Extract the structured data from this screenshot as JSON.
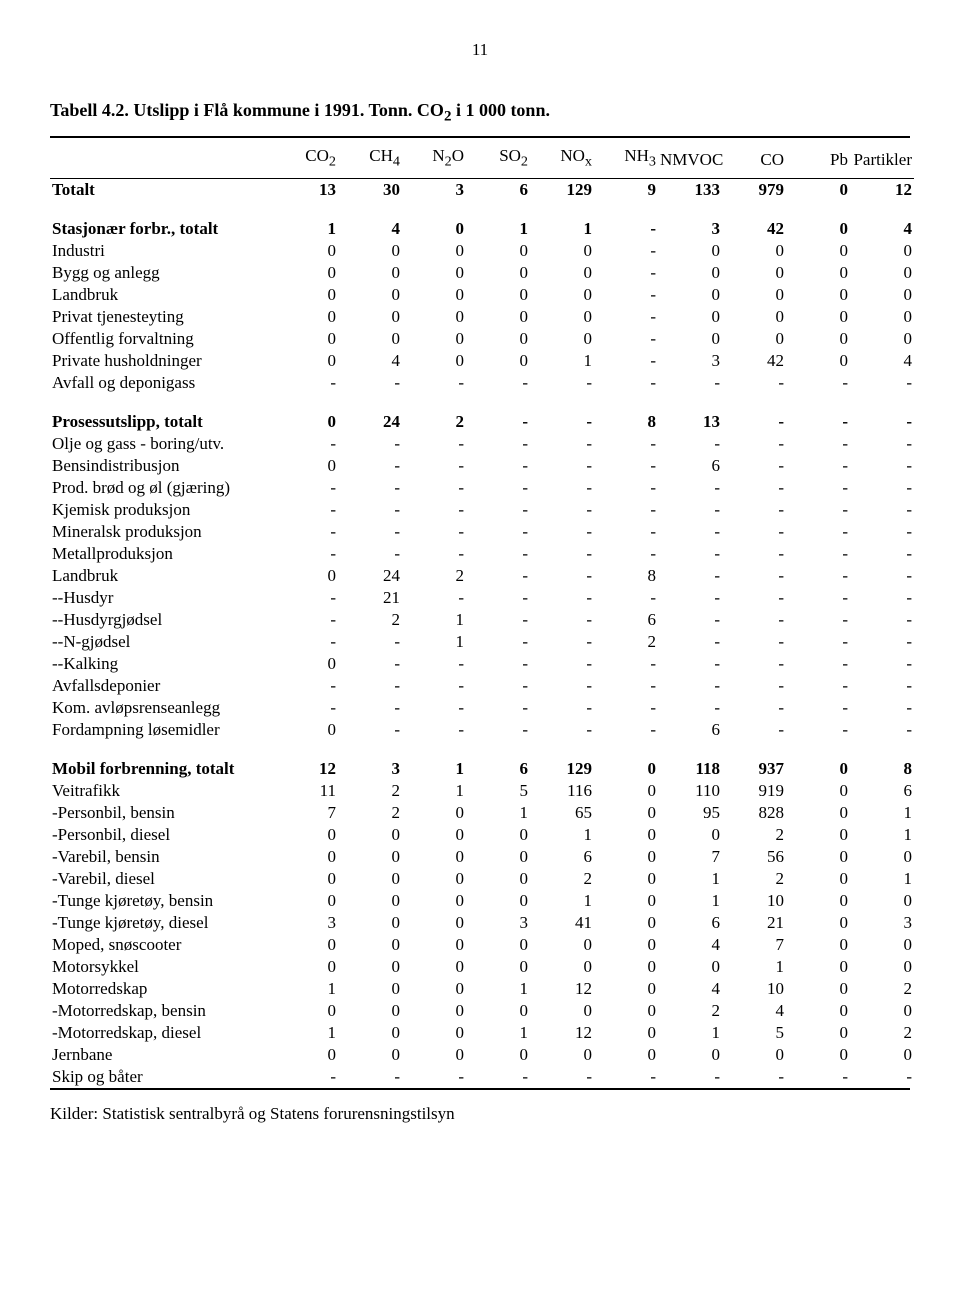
{
  "page_number": "11",
  "title_parts": {
    "a": "Tabell 4.2. Utslipp i Flå kommune i 1991. Tonn. CO",
    "sub": "2",
    "b": " i 1 000 tonn."
  },
  "headers": {
    "co2": {
      "a": "CO",
      "sub": "2"
    },
    "ch4": {
      "a": "CH",
      "sub": "4"
    },
    "n2o": {
      "a": "N",
      "sub": "2",
      "b": "O"
    },
    "so2": {
      "a": "SO",
      "sub": "2"
    },
    "nox": {
      "a": "NO",
      "sub": "x"
    },
    "nh3": {
      "a": "NH",
      "sub": "3"
    },
    "nmvoc": "NMVOC",
    "co": "CO",
    "pb": "Pb",
    "part": "Partikler"
  },
  "rows": [
    {
      "bold": true,
      "label": "Totalt",
      "v": [
        "13",
        "30",
        "3",
        "6",
        "129",
        "9",
        "133",
        "979",
        "0",
        "12"
      ]
    },
    {
      "gap": true,
      "bold": true,
      "label": "Stasjonær forbr., totalt",
      "v": [
        "1",
        "4",
        "0",
        "1",
        "1",
        "-",
        "3",
        "42",
        "0",
        "4"
      ]
    },
    {
      "label": "Industri",
      "v": [
        "0",
        "0",
        "0",
        "0",
        "0",
        "-",
        "0",
        "0",
        "0",
        "0"
      ]
    },
    {
      "label": "Bygg og anlegg",
      "v": [
        "0",
        "0",
        "0",
        "0",
        "0",
        "-",
        "0",
        "0",
        "0",
        "0"
      ]
    },
    {
      "label": "Landbruk",
      "v": [
        "0",
        "0",
        "0",
        "0",
        "0",
        "-",
        "0",
        "0",
        "0",
        "0"
      ]
    },
    {
      "label": "Privat tjenesteyting",
      "v": [
        "0",
        "0",
        "0",
        "0",
        "0",
        "-",
        "0",
        "0",
        "0",
        "0"
      ]
    },
    {
      "label": "Offentlig forvaltning",
      "v": [
        "0",
        "0",
        "0",
        "0",
        "0",
        "-",
        "0",
        "0",
        "0",
        "0"
      ]
    },
    {
      "label": "Private husholdninger",
      "v": [
        "0",
        "4",
        "0",
        "0",
        "1",
        "-",
        "3",
        "42",
        "0",
        "4"
      ]
    },
    {
      "label": "Avfall og deponigass",
      "v": [
        "-",
        "-",
        "-",
        "-",
        "-",
        "-",
        "-",
        "-",
        "-",
        "-"
      ]
    },
    {
      "gap": true,
      "bold": true,
      "label": "Prosessutslipp, totalt",
      "v": [
        "0",
        "24",
        "2",
        "-",
        "-",
        "8",
        "13",
        "-",
        "-",
        "-"
      ]
    },
    {
      "label": "Olje og gass - boring/utv.",
      "v": [
        "-",
        "-",
        "-",
        "-",
        "-",
        "-",
        "-",
        "-",
        "-",
        "-"
      ]
    },
    {
      "label": "Bensindistribusjon",
      "v": [
        "0",
        "-",
        "-",
        "-",
        "-",
        "-",
        "6",
        "-",
        "-",
        "-"
      ]
    },
    {
      "label": "Prod. brød og øl (gjæring)",
      "v": [
        "-",
        "-",
        "-",
        "-",
        "-",
        "-",
        "-",
        "-",
        "-",
        "-"
      ]
    },
    {
      "label": "Kjemisk produksjon",
      "v": [
        "-",
        "-",
        "-",
        "-",
        "-",
        "-",
        "-",
        "-",
        "-",
        "-"
      ]
    },
    {
      "label": "Mineralsk produksjon",
      "v": [
        "-",
        "-",
        "-",
        "-",
        "-",
        "-",
        "-",
        "-",
        "-",
        "-"
      ]
    },
    {
      "label": "Metallproduksjon",
      "v": [
        "-",
        "-",
        "-",
        "-",
        "-",
        "-",
        "-",
        "-",
        "-",
        "-"
      ]
    },
    {
      "label": "Landbruk",
      "v": [
        "0",
        "24",
        "2",
        "-",
        "-",
        "8",
        "-",
        "-",
        "-",
        "-"
      ]
    },
    {
      "label": "--Husdyr",
      "v": [
        "-",
        "21",
        "-",
        "-",
        "-",
        "-",
        "-",
        "-",
        "-",
        "-"
      ]
    },
    {
      "label": "--Husdyrgjødsel",
      "v": [
        "-",
        "2",
        "1",
        "-",
        "-",
        "6",
        "-",
        "-",
        "-",
        "-"
      ]
    },
    {
      "label": "--N-gjødsel",
      "v": [
        "-",
        "-",
        "1",
        "-",
        "-",
        "2",
        "-",
        "-",
        "-",
        "-"
      ]
    },
    {
      "label": "--Kalking",
      "v": [
        "0",
        "-",
        "-",
        "-",
        "-",
        "-",
        "-",
        "-",
        "-",
        "-"
      ]
    },
    {
      "label": "Avfallsdeponier",
      "v": [
        "-",
        "-",
        "-",
        "-",
        "-",
        "-",
        "-",
        "-",
        "-",
        "-"
      ]
    },
    {
      "label": "Kom. avløpsrenseanlegg",
      "v": [
        "-",
        "-",
        "-",
        "-",
        "-",
        "-",
        "-",
        "-",
        "-",
        "-"
      ]
    },
    {
      "label": "Fordampning løsemidler",
      "v": [
        "0",
        "-",
        "-",
        "-",
        "-",
        "-",
        "6",
        "-",
        "-",
        "-"
      ]
    },
    {
      "gap": true,
      "bold": true,
      "label": "Mobil forbrenning, totalt",
      "v": [
        "12",
        "3",
        "1",
        "6",
        "129",
        "0",
        "118",
        "937",
        "0",
        "8"
      ]
    },
    {
      "label": "Veitrafikk",
      "v": [
        "11",
        "2",
        "1",
        "5",
        "116",
        "0",
        "110",
        "919",
        "0",
        "6"
      ]
    },
    {
      "label": "-Personbil, bensin",
      "v": [
        "7",
        "2",
        "0",
        "1",
        "65",
        "0",
        "95",
        "828",
        "0",
        "1"
      ]
    },
    {
      "label": "-Personbil, diesel",
      "v": [
        "0",
        "0",
        "0",
        "0",
        "1",
        "0",
        "0",
        "2",
        "0",
        "1"
      ]
    },
    {
      "label": "-Varebil, bensin",
      "v": [
        "0",
        "0",
        "0",
        "0",
        "6",
        "0",
        "7",
        "56",
        "0",
        "0"
      ]
    },
    {
      "label": "-Varebil, diesel",
      "v": [
        "0",
        "0",
        "0",
        "0",
        "2",
        "0",
        "1",
        "2",
        "0",
        "1"
      ]
    },
    {
      "label": "-Tunge kjøretøy, bensin",
      "v": [
        "0",
        "0",
        "0",
        "0",
        "1",
        "0",
        "1",
        "10",
        "0",
        "0"
      ]
    },
    {
      "label": "-Tunge kjøretøy, diesel",
      "v": [
        "3",
        "0",
        "0",
        "3",
        "41",
        "0",
        "6",
        "21",
        "0",
        "3"
      ]
    },
    {
      "label": "Moped, snøscooter",
      "v": [
        "0",
        "0",
        "0",
        "0",
        "0",
        "0",
        "4",
        "7",
        "0",
        "0"
      ]
    },
    {
      "label": "Motorsykkel",
      "v": [
        "0",
        "0",
        "0",
        "0",
        "0",
        "0",
        "0",
        "1",
        "0",
        "0"
      ]
    },
    {
      "label": "Motorredskap",
      "v": [
        "1",
        "0",
        "0",
        "1",
        "12",
        "0",
        "4",
        "10",
        "0",
        "2"
      ]
    },
    {
      "label": "-Motorredskap, bensin",
      "v": [
        "0",
        "0",
        "0",
        "0",
        "0",
        "0",
        "2",
        "4",
        "0",
        "0"
      ]
    },
    {
      "label": "-Motorredskap, diesel",
      "v": [
        "1",
        "0",
        "0",
        "1",
        "12",
        "0",
        "1",
        "5",
        "0",
        "2"
      ]
    },
    {
      "label": "Jernbane",
      "v": [
        "0",
        "0",
        "0",
        "0",
        "0",
        "0",
        "0",
        "0",
        "0",
        "0"
      ]
    },
    {
      "label": "Skip og båter",
      "v": [
        "-",
        "-",
        "-",
        "-",
        "-",
        "-",
        "-",
        "-",
        "-",
        "-"
      ]
    }
  ],
  "footer": "Kilder: Statistisk sentralbyrå og Statens forurensningstilsyn"
}
